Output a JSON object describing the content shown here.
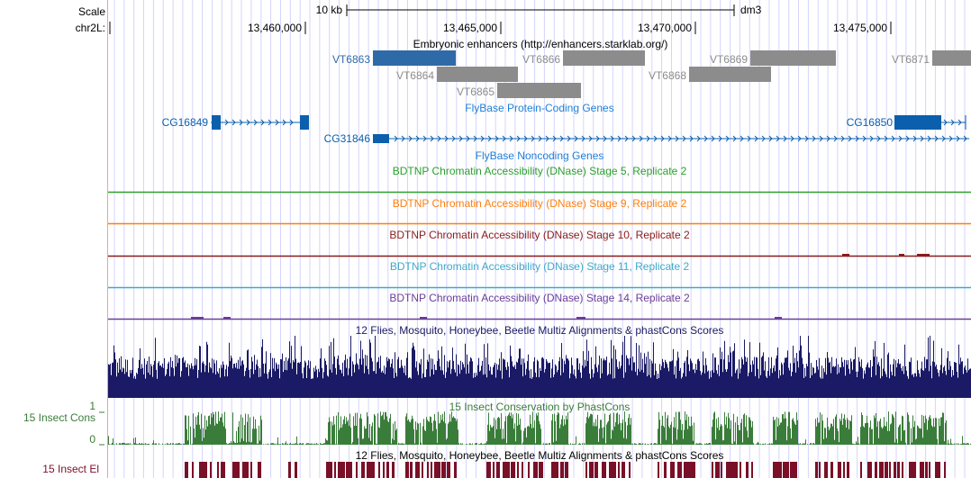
{
  "scale": {
    "label": "Scale",
    "bar_label": "10 kb",
    "assembly": "dm3"
  },
  "ruler": {
    "chrom_label": "chr2L:",
    "ticks": [
      "13,460,000",
      "13,465,000",
      "13,470,000",
      "13,475,000"
    ]
  },
  "tracks": {
    "enhancers": {
      "title": "Embryonic enhancers (http://enhancers.starklab.org/)",
      "items": [
        "VT6863",
        "VT6864",
        "VT6865",
        "VT6866",
        "VT6868",
        "VT6869",
        "VT6871"
      ]
    },
    "protein_genes": {
      "title": "FlyBase Protein-Coding Genes",
      "genes": [
        "CG16849",
        "CG31846",
        "CG16850"
      ]
    },
    "noncoding": {
      "title": "FlyBase Noncoding Genes"
    },
    "dnase": [
      {
        "title": "BDTNP Chromatin Accessibility (DNase) Stage 5, Replicate 2",
        "color": "#2ca02c"
      },
      {
        "title": "BDTNP Chromatin Accessibility (DNase) Stage 9, Replicate 2",
        "color": "#ff7f0e"
      },
      {
        "title": "BDTNP Chromatin Accessibility (DNase) Stage 10, Replicate 2",
        "color": "#8b1a1a"
      },
      {
        "title": "BDTNP Chromatin Accessibility (DNase) Stage 11, Replicate 2",
        "color": "#3fa9c9"
      },
      {
        "title": "BDTNP Chromatin Accessibility (DNase) Stage 14, Replicate 2",
        "color": "#6a3d9a"
      }
    ],
    "multiz": {
      "title": "12 Flies, Mosquito, Honeybee, Beetle Multiz Alignments & phastCons Scores"
    },
    "phastcons": {
      "title": "15 Insect Conservation by PhastCons",
      "side_label": "15 Insect Cons",
      "y_max": "1",
      "y_min": "0"
    },
    "elements": {
      "title": "12 Flies, Mosquito, Honeybee, Beetle Multiz Alignments & phastCons Scores",
      "side_label": "15 Insect El"
    }
  },
  "colors": {
    "ruler": "#000000",
    "gene": "#0b5fad",
    "enhancer_sel": "#2f6aa8",
    "enhancer": "#8c8c8c",
    "multiz": "#1a1a66",
    "phastcons": "#3a7d3a",
    "elements": "#7a1028",
    "grid": "#d0d0ff"
  }
}
